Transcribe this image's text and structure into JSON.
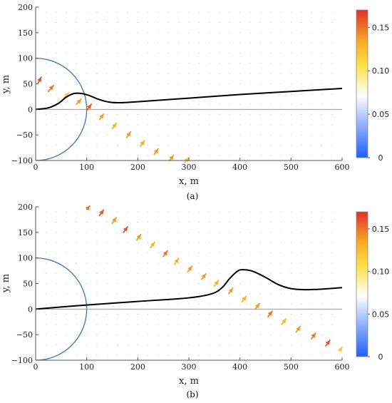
{
  "colors": {
    "trajectory": "#000000",
    "circle": "#4a7fb5",
    "zero_line": "#9a9a9a",
    "axes": "#555555",
    "colormap": [
      "#1f5fff",
      "#8fb0ff",
      "#ffffff",
      "#ffe24a",
      "#f5a623",
      "#e0302a"
    ]
  },
  "chart_data": [
    {
      "type": "vector-field",
      "panel_label": "(a)",
      "xlabel": "x, m",
      "ylabel": "y, m",
      "xlim": [
        0,
        600
      ],
      "ylim": [
        -100,
        200
      ],
      "x_ticks": [
        "0",
        "100",
        "200",
        "300",
        "400",
        "500",
        "600"
      ],
      "y_ticks": [
        "−100",
        "−50",
        "0",
        "50",
        "100",
        "150",
        "200"
      ],
      "colorbar": {
        "min": 0,
        "max": 0.17,
        "ticks": [
          "0",
          "0.05",
          "0.10",
          "0.15"
        ]
      },
      "circle": {
        "cx": 0,
        "cy": 0,
        "r": 100
      },
      "zero_line_y": 0,
      "trajectory": [
        [
          0,
          0
        ],
        [
          25,
          3
        ],
        [
          45,
          12
        ],
        [
          60,
          24
        ],
        [
          75,
          31
        ],
        [
          90,
          31
        ],
        [
          105,
          27
        ],
        [
          125,
          19
        ],
        [
          145,
          14
        ],
        [
          165,
          13
        ],
        [
          200,
          15
        ],
        [
          300,
          22
        ],
        [
          400,
          29
        ],
        [
          500,
          35
        ],
        [
          600,
          41
        ]
      ],
      "arrows": [
        {
          "x": 5,
          "y": 52,
          "dx": 6,
          "dy": 11,
          "m": 0.16
        },
        {
          "x": 25,
          "y": 35,
          "dx": 10,
          "dy": 12,
          "m": 0.15
        },
        {
          "x": 55,
          "y": 22,
          "dx": 10,
          "dy": 11,
          "m": 0.12
        },
        {
          "x": 80,
          "y": 10,
          "dx": 9,
          "dy": 10,
          "m": 0.14
        },
        {
          "x": 100,
          "y": -2,
          "dx": 9,
          "dy": 12,
          "m": 0.16
        },
        {
          "x": 125,
          "y": -20,
          "dx": 8,
          "dy": 11,
          "m": 0.14
        },
        {
          "x": 150,
          "y": -38,
          "dx": 8,
          "dy": 11,
          "m": 0.13
        },
        {
          "x": 178,
          "y": -55,
          "dx": 8,
          "dy": 11,
          "m": 0.14
        },
        {
          "x": 205,
          "y": -72,
          "dx": 8,
          "dy": 11,
          "m": 0.13
        },
        {
          "x": 232,
          "y": -88,
          "dx": 8,
          "dy": 11,
          "m": 0.14
        },
        {
          "x": 262,
          "y": -100,
          "dx": 8,
          "dy": 10,
          "m": 0.14
        },
        {
          "x": 292,
          "y": -104,
          "dx": 8,
          "dy": 10,
          "m": 0.12
        }
      ]
    },
    {
      "type": "vector-field",
      "panel_label": "(b)",
      "xlabel": "x, m",
      "ylabel": "y, m",
      "xlim": [
        0,
        600
      ],
      "ylim": [
        -100,
        200
      ],
      "x_ticks": [
        "0",
        "100",
        "200",
        "300",
        "400",
        "500",
        "600"
      ],
      "y_ticks": [
        "−100",
        "−50",
        "0",
        "50",
        "100",
        "150",
        "200"
      ],
      "colorbar": {
        "min": 0,
        "max": 0.17,
        "ticks": [
          "0",
          "0.05",
          "0.10",
          "0.15"
        ]
      },
      "circle": {
        "cx": 0,
        "cy": 0,
        "r": 100
      },
      "zero_line_y": 0,
      "trajectory": [
        [
          0,
          0
        ],
        [
          100,
          8
        ],
        [
          200,
          15
        ],
        [
          300,
          22
        ],
        [
          345,
          30
        ],
        [
          365,
          42
        ],
        [
          380,
          60
        ],
        [
          395,
          74
        ],
        [
          405,
          77
        ],
        [
          425,
          74
        ],
        [
          450,
          62
        ],
        [
          475,
          48
        ],
        [
          500,
          40
        ],
        [
          525,
          38
        ],
        [
          560,
          39
        ],
        [
          600,
          42
        ]
      ],
      "arrows": [
        {
          "x": 100,
          "y": 195,
          "dx": 6,
          "dy": 7,
          "m": 0.15
        },
        {
          "x": 125,
          "y": 183,
          "dx": 8,
          "dy": 11,
          "m": 0.16
        },
        {
          "x": 150,
          "y": 168,
          "dx": 8,
          "dy": 11,
          "m": 0.14
        },
        {
          "x": 172,
          "y": 150,
          "dx": 8,
          "dy": 11,
          "m": 0.16
        },
        {
          "x": 198,
          "y": 135,
          "dx": 8,
          "dy": 11,
          "m": 0.14
        },
        {
          "x": 225,
          "y": 120,
          "dx": 8,
          "dy": 11,
          "m": 0.13
        },
        {
          "x": 250,
          "y": 103,
          "dx": 8,
          "dy": 11,
          "m": 0.15
        },
        {
          "x": 272,
          "y": 88,
          "dx": 8,
          "dy": 11,
          "m": 0.13
        },
        {
          "x": 298,
          "y": 73,
          "dx": 8,
          "dy": 11,
          "m": 0.14
        },
        {
          "x": 325,
          "y": 58,
          "dx": 8,
          "dy": 11,
          "m": 0.14
        },
        {
          "x": 350,
          "y": 45,
          "dx": 8,
          "dy": 11,
          "m": 0.13
        },
        {
          "x": 378,
          "y": 30,
          "dx": 8,
          "dy": 11,
          "m": 0.14
        },
        {
          "x": 404,
          "y": 14,
          "dx": 8,
          "dy": 11,
          "m": 0.13
        },
        {
          "x": 430,
          "y": 0,
          "dx": 8,
          "dy": 11,
          "m": 0.14
        },
        {
          "x": 455,
          "y": -15,
          "dx": 8,
          "dy": 11,
          "m": 0.15
        },
        {
          "x": 482,
          "y": -30,
          "dx": 8,
          "dy": 11,
          "m": 0.13
        },
        {
          "x": 510,
          "y": -45,
          "dx": 8,
          "dy": 11,
          "m": 0.14
        },
        {
          "x": 540,
          "y": -58,
          "dx": 8,
          "dy": 11,
          "m": 0.15
        },
        {
          "x": 568,
          "y": -72,
          "dx": 8,
          "dy": 11,
          "m": 0.16
        },
        {
          "x": 595,
          "y": -82,
          "dx": 5,
          "dy": 8,
          "m": 0.12
        }
      ]
    }
  ]
}
